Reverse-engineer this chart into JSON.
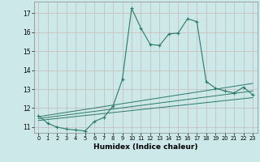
{
  "xlabel": "Humidex (Indice chaleur)",
  "background_color": "#cce8e8",
  "grid_color": "#c8b8b8",
  "line_color": "#2a7a6a",
  "xlim": [
    -0.5,
    23.5
  ],
  "ylim": [
    10.7,
    17.6
  ],
  "yticks": [
    11,
    12,
    13,
    14,
    15,
    16,
    17
  ],
  "xticks": [
    0,
    1,
    2,
    3,
    4,
    5,
    6,
    7,
    8,
    9,
    10,
    11,
    12,
    13,
    14,
    15,
    16,
    17,
    18,
    19,
    20,
    21,
    22,
    23
  ],
  "main_x": [
    0,
    1,
    2,
    3,
    4,
    5,
    6,
    7,
    8,
    9,
    10,
    11,
    12,
    13,
    14,
    15,
    16,
    17,
    18,
    19,
    20,
    21,
    22,
    23
  ],
  "main_y": [
    11.6,
    11.2,
    11.0,
    10.9,
    10.85,
    10.8,
    11.3,
    11.5,
    12.1,
    13.5,
    17.25,
    16.2,
    15.35,
    15.3,
    15.9,
    15.95,
    16.7,
    16.55,
    13.4,
    13.05,
    12.9,
    12.8,
    13.1,
    12.7
  ],
  "line2_x": [
    0,
    23
  ],
  "line2_y": [
    11.55,
    13.3
  ],
  "line3_x": [
    0,
    23
  ],
  "line3_y": [
    11.45,
    12.9
  ],
  "line4_x": [
    0,
    23
  ],
  "line4_y": [
    11.35,
    12.55
  ]
}
